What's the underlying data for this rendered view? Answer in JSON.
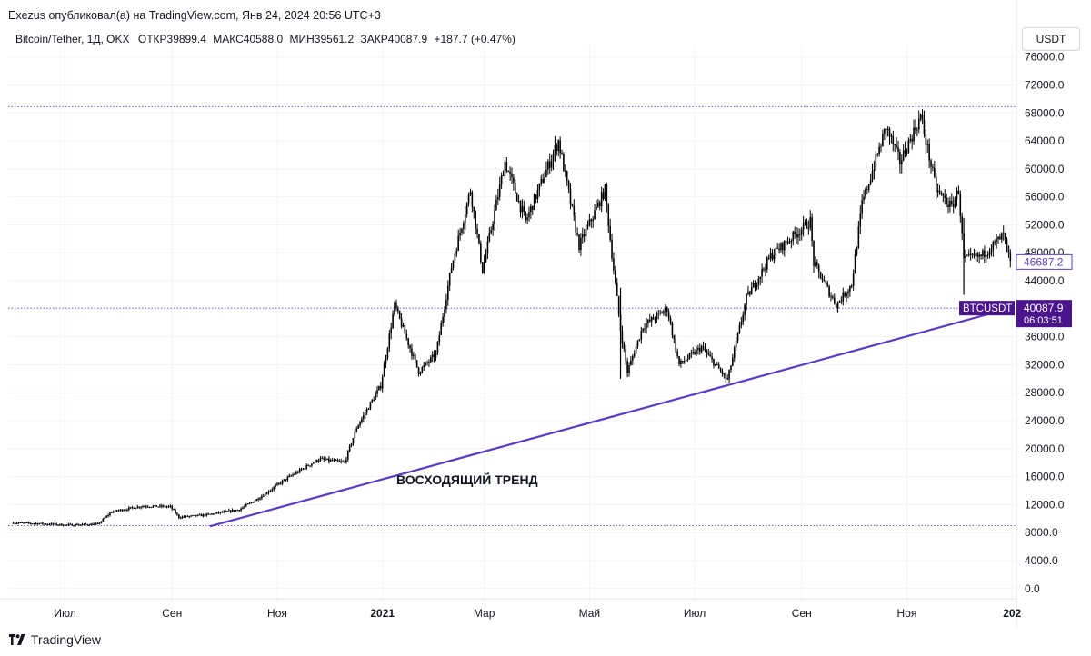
{
  "header": {
    "publish_line": "Exezus опубликовал(а) на TradingView.com, Янв 24, 2024 20:56 UTC+3"
  },
  "legend": {
    "symbol": "Bitcoin/Tether, 1Д, OKX",
    "open": "ОТКР39899.4",
    "high": "МАКС40588.0",
    "low": "МИН39561.2",
    "close": "ЗАКР40087.9",
    "change": "+187.7 (+0.47%)"
  },
  "currency_button": "USDT",
  "footer": {
    "brand": "TradingView"
  },
  "colors": {
    "trendline": "#5b3cc4",
    "price_badge": "#4a148c",
    "level_line": "#5c6bc0",
    "candle": "#000000"
  },
  "chart_data": {
    "type": "candlestick",
    "title": "",
    "annotation": "ВОСХОДЯЩИЙ ТРЕНД",
    "y_axis": {
      "ticks": [
        "0.0",
        "4000.0",
        "8000.0",
        "12000.0",
        "16000.0",
        "20000.0",
        "24000.0",
        "28000.0",
        "32000.0",
        "36000.0",
        "40000.0",
        "44000.0",
        "48000.0",
        "52000.0",
        "56000.0",
        "60000.0",
        "64000.0",
        "68000.0",
        "72000.0",
        "76000.0"
      ],
      "ylim": [
        -1200,
        77000
      ]
    },
    "x_axis": {
      "ticks": [
        {
          "label": "Июл",
          "date": "2020-07-01",
          "bold": false
        },
        {
          "label": "Сен",
          "date": "2020-09-01",
          "bold": false
        },
        {
          "label": "Ноя",
          "date": "2020-11-01",
          "bold": false
        },
        {
          "label": "2021",
          "date": "2021-01-01",
          "bold": true
        },
        {
          "label": "Мар",
          "date": "2021-03-01",
          "bold": false
        },
        {
          "label": "Май",
          "date": "2021-05-01",
          "bold": false
        },
        {
          "label": "Июл",
          "date": "2021-07-01",
          "bold": false
        },
        {
          "label": "Сен",
          "date": "2021-09-01",
          "bold": false
        },
        {
          "label": "Ноя",
          "date": "2021-11-01",
          "bold": false
        },
        {
          "label": "202",
          "date": "2022-01-01",
          "bold": true
        }
      ],
      "xlim": [
        "2020-05-29",
        "2022-01-03"
      ]
    },
    "price_path": [
      [
        "2020-06-01",
        9400
      ],
      [
        "2020-06-15",
        9300
      ],
      [
        "2020-07-01",
        9100
      ],
      [
        "2020-07-20",
        9200
      ],
      [
        "2020-07-28",
        11000
      ],
      [
        "2020-08-15",
        11800
      ],
      [
        "2020-08-31",
        11700
      ],
      [
        "2020-09-05",
        10200
      ],
      [
        "2020-09-20",
        10500
      ],
      [
        "2020-10-10",
        11300
      ],
      [
        "2020-10-21",
        12900
      ],
      [
        "2020-11-05",
        15500
      ],
      [
        "2020-11-25",
        18500
      ],
      [
        "2020-12-10",
        18000
      ],
      [
        "2020-12-17",
        23000
      ],
      [
        "2020-12-31",
        29000
      ],
      [
        "2021-01-08",
        40500
      ],
      [
        "2021-01-22",
        31000
      ],
      [
        "2021-02-01",
        33500
      ],
      [
        "2021-02-10",
        46000
      ],
      [
        "2021-02-21",
        57000
      ],
      [
        "2021-02-28",
        45500
      ],
      [
        "2021-03-13",
        61000
      ],
      [
        "2021-03-25",
        52500
      ],
      [
        "2021-04-13",
        64000
      ],
      [
        "2021-04-25",
        49000
      ],
      [
        "2021-05-10",
        57000
      ],
      [
        "2021-05-13",
        50000
      ],
      [
        "2021-05-19",
        37000
      ],
      [
        "2021-05-23",
        31000
      ],
      [
        "2021-06-01",
        37500
      ],
      [
        "2021-06-15",
        40000
      ],
      [
        "2021-06-22",
        32000
      ],
      [
        "2021-07-05",
        34500
      ],
      [
        "2021-07-20",
        29800
      ],
      [
        "2021-07-31",
        41500
      ],
      [
        "2021-08-14",
        47500
      ],
      [
        "2021-08-23",
        49500
      ],
      [
        "2021-09-06",
        52500
      ],
      [
        "2021-09-08",
        46500
      ],
      [
        "2021-09-21",
        40500
      ],
      [
        "2021-09-30",
        43500
      ],
      [
        "2021-10-06",
        55000
      ],
      [
        "2021-10-20",
        66000
      ],
      [
        "2021-10-28",
        61000
      ],
      [
        "2021-11-09",
        67500
      ],
      [
        "2021-11-18",
        57000
      ],
      [
        "2021-11-27",
        54500
      ],
      [
        "2021-12-01",
        57000
      ],
      [
        "2021-12-04",
        47000
      ],
      [
        "2021-12-14",
        47500
      ],
      [
        "2021-12-27",
        50500
      ],
      [
        "2021-12-31",
        46500
      ]
    ],
    "annotations": {
      "resistance_level": 68900,
      "support_level": 9000,
      "current_price_level": 40087.9,
      "trendline": [
        [
          "2020-09-23",
          8900
        ],
        [
          "2021-12-31",
          40087.9
        ]
      ],
      "price_labels": [
        {
          "symbol": "BTCUSDT",
          "value": "40087.9",
          "countdown": "06:03:51"
        },
        {
          "value": "46687.2"
        }
      ]
    }
  }
}
